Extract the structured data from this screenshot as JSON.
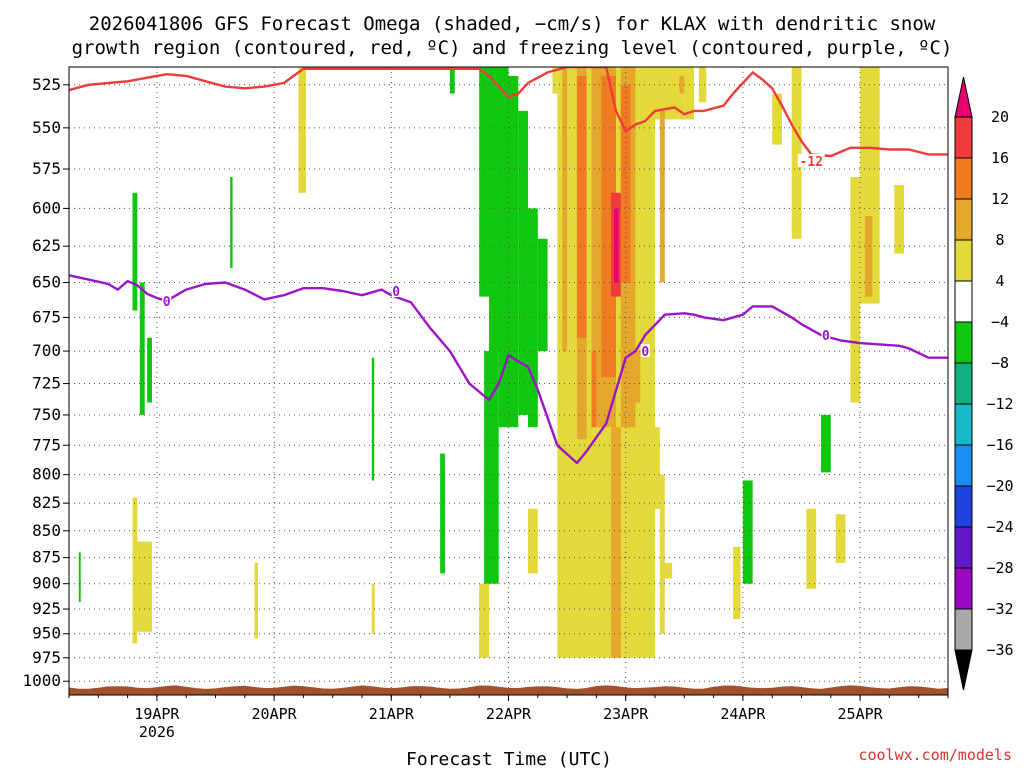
{
  "chart_data": {
    "type": "heatmap",
    "title_line1": "2026041806 GFS Forecast Omega (shaded, −cm/s) for KLAX with dendritic snow",
    "title_line2": "growth region (contoured, red, ºC) and freezing level (contoured, purple, ºC)",
    "xlabel": "Forecast Time (UTC)",
    "ylabel": "",
    "x_ticks": [
      {
        "label": "19APR",
        "sub": "2026",
        "hour": 18
      },
      {
        "label": "20APR",
        "sub": "",
        "hour": 42
      },
      {
        "label": "21APR",
        "sub": "",
        "hour": 66
      },
      {
        "label": "22APR",
        "sub": "",
        "hour": 90
      },
      {
        "label": "23APR",
        "sub": "",
        "hour": 114
      },
      {
        "label": "24APR",
        "sub": "",
        "hour": 138
      },
      {
        "label": "25APR",
        "sub": "",
        "hour": 162
      }
    ],
    "xlim_hours": [
      0,
      180
    ],
    "y_ticks": [
      525,
      550,
      575,
      600,
      625,
      650,
      675,
      700,
      725,
      750,
      775,
      800,
      825,
      850,
      875,
      900,
      925,
      950,
      975,
      1000
    ],
    "ylim_hPa": [
      1015,
      515
    ],
    "y_log_scale": true,
    "grid": true,
    "colorbar": {
      "ticks": [
        "20",
        "16",
        "12",
        "8",
        "4",
        "−4",
        "−8",
        "−12",
        "−16",
        "−20",
        "−24",
        "−28",
        "−32",
        "−36"
      ],
      "bins": [
        {
          "color": "#e8006e"
        },
        {
          "color": "#ee3c3c"
        },
        {
          "color": "#f07b22"
        },
        {
          "color": "#e3a82c"
        },
        {
          "color": "#e3d93a"
        },
        {
          "color": "#ffffff"
        },
        {
          "color": "#0ec70e"
        },
        {
          "color": "#10b07f"
        },
        {
          "color": "#18b8c8"
        },
        {
          "color": "#1a8ef0"
        },
        {
          "color": "#2040e0"
        },
        {
          "color": "#6018c8"
        },
        {
          "color": "#9a0ac0"
        },
        {
          "color": "#a8a8a8"
        },
        {
          "color": "#000000"
        }
      ]
    },
    "series": [
      {
        "name": "dendritic growth (-12)",
        "label": "-12",
        "color": "#ee3b3b",
        "points": [
          [
            0,
            528
          ],
          [
            4,
            525
          ],
          [
            8,
            524
          ],
          [
            12,
            523
          ],
          [
            16,
            521
          ],
          [
            20,
            519
          ],
          [
            24,
            520
          ],
          [
            28,
            523
          ],
          [
            32,
            526
          ],
          [
            36,
            527
          ],
          [
            40,
            526
          ],
          [
            44,
            524
          ],
          [
            46,
            520
          ],
          [
            48,
            516
          ],
          [
            84,
            516
          ],
          [
            86,
            520
          ],
          [
            88,
            526
          ],
          [
            90,
            532
          ],
          [
            92,
            530
          ],
          [
            94,
            524
          ],
          [
            96,
            521
          ],
          [
            98,
            518
          ],
          [
            102,
            515
          ],
          [
            110,
            515
          ],
          [
            112,
            540
          ],
          [
            114,
            552
          ],
          [
            116,
            548
          ],
          [
            118,
            546
          ],
          [
            120,
            540
          ],
          [
            124,
            538
          ],
          [
            126,
            542
          ],
          [
            128,
            540
          ],
          [
            130,
            540
          ],
          [
            134,
            537
          ],
          [
            136,
            530
          ],
          [
            138,
            524
          ],
          [
            140,
            518
          ],
          [
            142,
            522
          ],
          [
            144,
            527
          ],
          [
            146,
            537
          ],
          [
            148,
            548
          ],
          [
            150,
            558
          ],
          [
            152,
            566
          ],
          [
            156,
            567
          ],
          [
            160,
            562
          ],
          [
            164,
            562
          ],
          [
            168,
            563
          ],
          [
            172,
            563
          ],
          [
            176,
            566
          ],
          [
            180,
            566
          ]
        ],
        "label_hour": 152,
        "label_hPa": 570
      },
      {
        "name": "freezing level (0)",
        "label": "0",
        "color": "#9c14c8",
        "points": [
          [
            0,
            645
          ],
          [
            4,
            648
          ],
          [
            8,
            651
          ],
          [
            10,
            655
          ],
          [
            12,
            649
          ],
          [
            14,
            652
          ],
          [
            16,
            658
          ],
          [
            18,
            661
          ],
          [
            20,
            663
          ],
          [
            24,
            655
          ],
          [
            28,
            651
          ],
          [
            32,
            650
          ],
          [
            36,
            655
          ],
          [
            40,
            662
          ],
          [
            44,
            659
          ],
          [
            48,
            654
          ],
          [
            52,
            654
          ],
          [
            56,
            656
          ],
          [
            60,
            659
          ],
          [
            64,
            655
          ],
          [
            66,
            659
          ],
          [
            70,
            664
          ],
          [
            74,
            683
          ],
          [
            78,
            700
          ],
          [
            82,
            725
          ],
          [
            86,
            738
          ],
          [
            88,
            725
          ],
          [
            90,
            703
          ],
          [
            92,
            708
          ],
          [
            94,
            712
          ],
          [
            96,
            730
          ],
          [
            100,
            775
          ],
          [
            104,
            790
          ],
          [
            106,
            780
          ],
          [
            110,
            757
          ],
          [
            114,
            705
          ],
          [
            116,
            700
          ],
          [
            118,
            688
          ],
          [
            122,
            673
          ],
          [
            126,
            672
          ],
          [
            128,
            673
          ],
          [
            130,
            675
          ],
          [
            134,
            677
          ],
          [
            138,
            673
          ],
          [
            140,
            667
          ],
          [
            144,
            667
          ],
          [
            148,
            675
          ],
          [
            150,
            680
          ],
          [
            154,
            688
          ],
          [
            158,
            692
          ],
          [
            162,
            694
          ],
          [
            166,
            695
          ],
          [
            170,
            696
          ],
          [
            172,
            698
          ],
          [
            176,
            705
          ],
          [
            180,
            705
          ]
        ],
        "labels": [
          {
            "hour": 20,
            "hPa": 663
          },
          {
            "hour": 67,
            "hPa": 656
          },
          {
            "hour": 118,
            "hPa": 700
          },
          {
            "hour": 155,
            "hPa": 688
          }
        ]
      }
    ],
    "shaded_regions": [
      {
        "c": 6,
        "h0": 2,
        "h1": 2.4,
        "p0": 870,
        "p1": 918
      },
      {
        "c": 6,
        "h0": 13,
        "h1": 14,
        "p0": 590,
        "p1": 670
      },
      {
        "c": 6,
        "h0": 14.5,
        "h1": 15.5,
        "p0": 650,
        "p1": 750
      },
      {
        "c": 6,
        "h0": 16,
        "h1": 17,
        "p0": 690,
        "p1": 740
      },
      {
        "c": 6,
        "h0": 33,
        "h1": 33.5,
        "p0": 580,
        "p1": 640
      },
      {
        "c": 6,
        "h0": 62,
        "h1": 62.5,
        "p0": 705,
        "p1": 805
      },
      {
        "c": 6,
        "h0": 76,
        "h1": 77,
        "p0": 782,
        "p1": 890
      },
      {
        "c": 6,
        "h0": 78,
        "h1": 79,
        "p0": 515,
        "p1": 530
      },
      {
        "c": 6,
        "h0": 84,
        "h1": 86,
        "p0": 515,
        "p1": 660
      },
      {
        "c": 6,
        "h0": 86,
        "h1": 90,
        "p0": 515,
        "p1": 700
      },
      {
        "c": 6,
        "h0": 85,
        "h1": 88,
        "p0": 700,
        "p1": 900
      },
      {
        "c": 6,
        "h0": 88,
        "h1": 92,
        "p0": 520,
        "p1": 760
      },
      {
        "c": 6,
        "h0": 92,
        "h1": 94,
        "p0": 540,
        "p1": 750
      },
      {
        "c": 6,
        "h0": 94,
        "h1": 96,
        "p0": 600,
        "p1": 760
      },
      {
        "c": 6,
        "h0": 96,
        "h1": 98,
        "p0": 620,
        "p1": 700
      },
      {
        "c": 6,
        "h0": 138,
        "h1": 140,
        "p0": 805,
        "p1": 900
      },
      {
        "c": 6,
        "h0": 154,
        "h1": 156,
        "p0": 750,
        "p1": 798
      },
      {
        "c": 4,
        "h0": 13,
        "h1": 14,
        "p0": 820,
        "p1": 960
      },
      {
        "c": 4,
        "h0": 14,
        "h1": 17,
        "p0": 860,
        "p1": 948
      },
      {
        "c": 4,
        "h0": 38,
        "h1": 38.7,
        "p0": 880,
        "p1": 955
      },
      {
        "c": 4,
        "h0": 47,
        "h1": 48.5,
        "p0": 515,
        "p1": 590
      },
      {
        "c": 4,
        "h0": 62,
        "h1": 62.6,
        "p0": 900,
        "p1": 950
      },
      {
        "c": 4,
        "h0": 84,
        "h1": 86,
        "p0": 900,
        "p1": 975
      },
      {
        "c": 4,
        "h0": 94,
        "h1": 96,
        "p0": 830,
        "p1": 890
      },
      {
        "c": 4,
        "h0": 99,
        "h1": 100,
        "p0": 515,
        "p1": 530
      },
      {
        "c": 4,
        "h0": 100,
        "h1": 120,
        "p0": 515,
        "p1": 975
      },
      {
        "c": 4,
        "h0": 120,
        "h1": 126,
        "p0": 515,
        "p1": 545
      },
      {
        "c": 4,
        "h0": 117,
        "h1": 119,
        "p0": 700,
        "p1": 800
      },
      {
        "c": 4,
        "h0": 119,
        "h1": 121,
        "p0": 760,
        "p1": 830
      },
      {
        "c": 4,
        "h0": 121,
        "h1": 122,
        "p0": 800,
        "p1": 950
      },
      {
        "c": 4,
        "h0": 121.5,
        "h1": 123.5,
        "p0": 880,
        "p1": 895
      },
      {
        "c": 4,
        "h0": 126,
        "h1": 128,
        "p0": 515,
        "p1": 545
      },
      {
        "c": 4,
        "h0": 129,
        "h1": 130.5,
        "p0": 515,
        "p1": 535
      },
      {
        "c": 4,
        "h0": 136,
        "h1": 137.5,
        "p0": 865,
        "p1": 935
      },
      {
        "c": 4,
        "h0": 144,
        "h1": 146,
        "p0": 530,
        "p1": 560
      },
      {
        "c": 4,
        "h0": 148,
        "h1": 150,
        "p0": 515,
        "p1": 620
      },
      {
        "c": 4,
        "h0": 151,
        "h1": 153,
        "p0": 830,
        "p1": 905
      },
      {
        "c": 4,
        "h0": 157,
        "h1": 159,
        "p0": 835,
        "p1": 880
      },
      {
        "c": 4,
        "h0": 160,
        "h1": 162,
        "p0": 580,
        "p1": 740
      },
      {
        "c": 4,
        "h0": 162,
        "h1": 166,
        "p0": 515,
        "p1": 665
      },
      {
        "c": 4,
        "h0": 169,
        "h1": 171,
        "p0": 585,
        "p1": 630
      },
      {
        "c": 3,
        "h0": 101,
        "h1": 102,
        "p0": 515,
        "p1": 700
      },
      {
        "c": 3,
        "h0": 104,
        "h1": 106,
        "p0": 515,
        "p1": 770
      },
      {
        "c": 3,
        "h0": 107,
        "h1": 112,
        "p0": 515,
        "p1": 760
      },
      {
        "c": 3,
        "h0": 111,
        "h1": 113,
        "p0": 760,
        "p1": 975
      },
      {
        "c": 3,
        "h0": 113,
        "h1": 116,
        "p0": 515,
        "p1": 760
      },
      {
        "c": 3,
        "h0": 115,
        "h1": 117,
        "p0": 700,
        "p1": 740
      },
      {
        "c": 3,
        "h0": 121,
        "h1": 122,
        "p0": 540,
        "p1": 650
      },
      {
        "c": 3,
        "h0": 125,
        "h1": 126,
        "p0": 520,
        "p1": 530
      },
      {
        "c": 3,
        "h0": 163,
        "h1": 164.5,
        "p0": 605,
        "p1": 660
      },
      {
        "c": 2,
        "h0": 104,
        "h1": 106,
        "p0": 520,
        "p1": 690
      },
      {
        "c": 2,
        "h0": 107,
        "h1": 108,
        "p0": 700,
        "p1": 760
      },
      {
        "c": 2,
        "h0": 109,
        "h1": 112,
        "p0": 520,
        "p1": 720
      },
      {
        "c": 2,
        "h0": 113,
        "h1": 115,
        "p0": 525,
        "p1": 650
      },
      {
        "c": 1,
        "h0": 111,
        "h1": 113,
        "p0": 590,
        "p1": 660
      },
      {
        "c": 0,
        "h0": 111.6,
        "h1": 112.5,
        "p0": 600,
        "p1": 650
      }
    ],
    "terrain_color": "#a0522d",
    "credit": "coolwx.com/models"
  }
}
